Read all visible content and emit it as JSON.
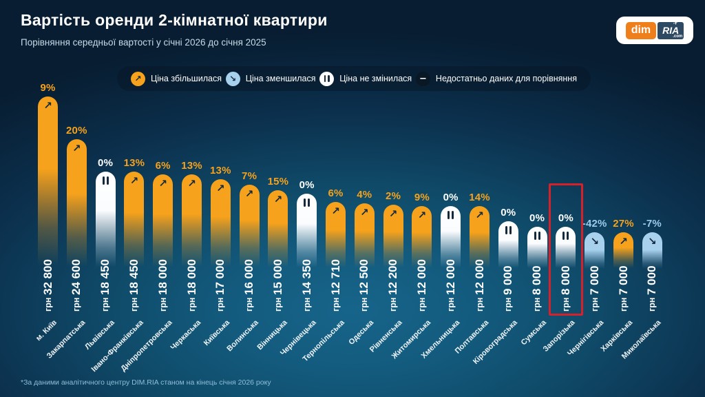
{
  "header": {
    "title": "Вартість оренди 2-кімнатної квартири",
    "subtitle": "Порівняння середньої вартості у січні 2026 до січня 2025"
  },
  "logo": {
    "dim": "dim",
    "ria": "RIA",
    "com": ".com"
  },
  "legend": {
    "items": [
      {
        "label": "Ціна збільшилася",
        "icon": "arrow-up-right",
        "type": "up"
      },
      {
        "label": "Ціна зменшилася",
        "icon": "arrow-down-right",
        "type": "down"
      },
      {
        "label": "Ціна не змінилася",
        "icon": "pause",
        "type": "same"
      },
      {
        "label": "Недостатньо даних для порівняння",
        "icon": "minus",
        "type": "nodata"
      }
    ]
  },
  "chart_data": {
    "type": "bar",
    "title": "Вартість оренди 2-кімнатної квартири",
    "subtitle": "Порівняння середньої вартості у січні 2026 до січня 2025",
    "unit": "грн",
    "ymax": 32800,
    "categories": [
      "м. Київ",
      "Закарпатська",
      "Львівська",
      "Івано-Франківська",
      "Дніпропетровська",
      "Черкаська",
      "Київська",
      "Волинська",
      "Вінницька",
      "Чернівецька",
      "Тернопільська",
      "Одеська",
      "Рівненська",
      "Житомирська",
      "Хмельницька",
      "Полтавська",
      "Кіровоградська",
      "Сумська",
      "Запорізька",
      "Чернігівська",
      "Харківська",
      "Миколаївська"
    ],
    "values": [
      32800,
      24600,
      18450,
      18450,
      18000,
      18000,
      17000,
      16000,
      15000,
      14350,
      12710,
      12500,
      12200,
      12000,
      12000,
      12000,
      9000,
      8000,
      8000,
      7000,
      7000,
      7000
    ],
    "value_labels": [
      "32 800",
      "24 600",
      "18 450",
      "18 450",
      "18 000",
      "18 000",
      "17 000",
      "16 000",
      "15 000",
      "14 350",
      "12 710",
      "12 500",
      "12 200",
      "12 000",
      "12 000",
      "12 000",
      "9 000",
      "8 000",
      "8 000",
      "7 000",
      "7 000",
      "7 000"
    ],
    "change_labels": [
      "9%",
      "20%",
      "0%",
      "13%",
      "6%",
      "13%",
      "13%",
      "7%",
      "15%",
      "0%",
      "6%",
      "4%",
      "2%",
      "9%",
      "0%",
      "14%",
      "0%",
      "0%",
      "0%",
      "-42%",
      "27%",
      "-7%"
    ],
    "trends": [
      "up",
      "up",
      "same",
      "up",
      "up",
      "up",
      "up",
      "up",
      "up",
      "same",
      "up",
      "up",
      "up",
      "up",
      "same",
      "up",
      "same",
      "same",
      "same",
      "down",
      "up",
      "down"
    ],
    "highlighted_index": 18,
    "highlighted_category": "Запорізька",
    "legend_position": "top",
    "grid": false
  },
  "colors": {
    "increase": "#F6A21C",
    "decrease": "#A8D1EE",
    "no_change": "#FFFFFF",
    "no_data": "#0A1724",
    "icon_dark": "#16293C",
    "highlight_border": "#D6212B",
    "logo_orange": "#EF7F1B",
    "logo_navy": "#2E4A63"
  },
  "footer": {
    "note": "*За даними аналітичного центру DIM.RIA станом на кінець січня 2026 року"
  }
}
